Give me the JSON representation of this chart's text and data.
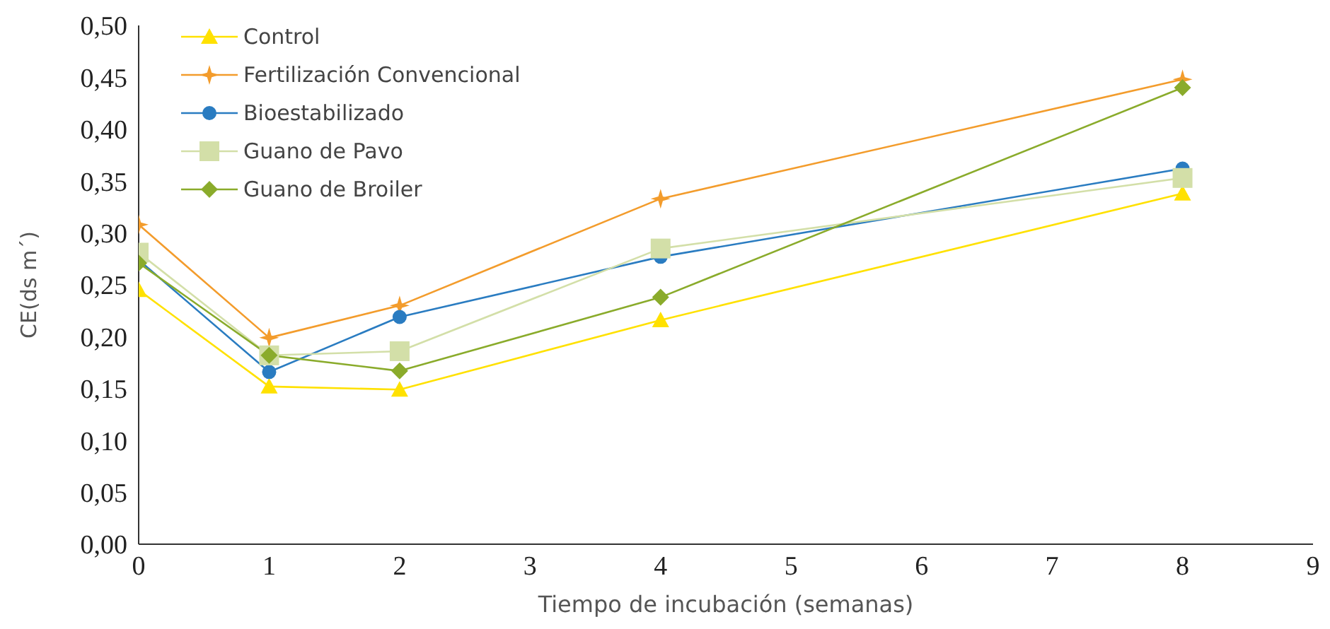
{
  "chart_data": {
    "type": "line",
    "xlabel": "Tiempo de incubación (semanas)",
    "ylabel": "CE(ds m´)",
    "x": [
      0,
      1,
      2,
      4,
      8
    ],
    "series": [
      {
        "name": "Control",
        "color": "#ffe100",
        "marker": "triangle",
        "values": [
          0.245,
          0.152,
          0.149,
          0.216,
          0.338
        ]
      },
      {
        "name": "Fertilización Convencional",
        "color": "#f39c2c",
        "marker": "star",
        "values": [
          0.308,
          0.199,
          0.23,
          0.333,
          0.448
        ]
      },
      {
        "name": "Bioestabilizado",
        "color": "#2a7cc1",
        "marker": "circle",
        "values": [
          0.274,
          0.166,
          0.219,
          0.277,
          0.362
        ]
      },
      {
        "name": "Guano de Pavo",
        "color": "#d3dfa8",
        "marker": "square",
        "values": [
          0.281,
          0.182,
          0.186,
          0.285,
          0.353
        ]
      },
      {
        "name": "Guano de Broiler",
        "color": "#8aab2b",
        "marker": "diamond",
        "values": [
          0.271,
          0.182,
          0.167,
          0.238,
          0.44
        ]
      }
    ],
    "xlim": [
      0,
      9
    ],
    "xticks": [
      0,
      1,
      2,
      3,
      4,
      5,
      6,
      7,
      8,
      9
    ],
    "ylim": [
      0,
      0.5
    ],
    "yticks": [
      {
        "value": 0,
        "label": "0,00"
      },
      {
        "value": 0.05,
        "label": "0,05"
      },
      {
        "value": 0.1,
        "label": "0,10"
      },
      {
        "value": 0.15,
        "label": "0,15"
      },
      {
        "value": 0.2,
        "label": "0,20"
      },
      {
        "value": 0.25,
        "label": "0,25"
      },
      {
        "value": 0.3,
        "label": "0,30"
      },
      {
        "value": 0.35,
        "label": "0,35"
      },
      {
        "value": 0.4,
        "label": "0,40"
      },
      {
        "value": 0.45,
        "label": "0,45"
      },
      {
        "value": 0.5,
        "label": "0,50"
      }
    ],
    "grid": false,
    "legend": "top left",
    "line_style": "solid"
  }
}
